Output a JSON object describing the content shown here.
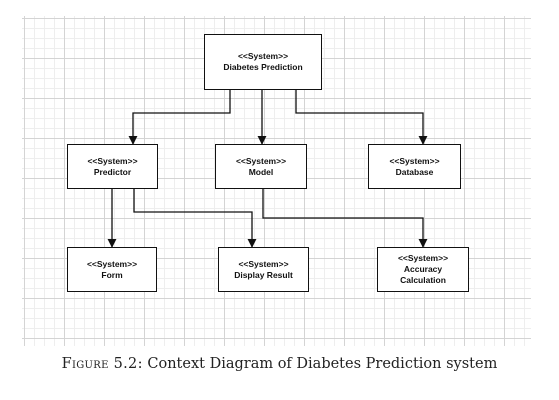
{
  "diagram": {
    "nodes": [
      {
        "id": "root",
        "stereotype": "<<System>>",
        "name": "Diabetes Prediction"
      },
      {
        "id": "predictor",
        "stereotype": "<<System>>",
        "name": "Predictor"
      },
      {
        "id": "model",
        "stereotype": "<<System>>",
        "name": "Model"
      },
      {
        "id": "database",
        "stereotype": "<<System>>",
        "name": "Database"
      },
      {
        "id": "form",
        "stereotype": "<<System>>",
        "name": "Form"
      },
      {
        "id": "display",
        "stereotype": "<<System>>",
        "name": "Display Result"
      },
      {
        "id": "accuracy",
        "stereotype": "<<System>>",
        "name": "Accuracy Calculation"
      }
    ],
    "edges": [
      {
        "from": "root",
        "to": "predictor"
      },
      {
        "from": "root",
        "to": "model"
      },
      {
        "from": "root",
        "to": "database"
      },
      {
        "from": "predictor",
        "to": "form"
      },
      {
        "from": "predictor",
        "to": "display"
      },
      {
        "from": "model",
        "to": "accuracy"
      }
    ]
  },
  "caption": {
    "label": "Figure 5.2:",
    "text": "Context Diagram of Diabetes Prediction system"
  }
}
